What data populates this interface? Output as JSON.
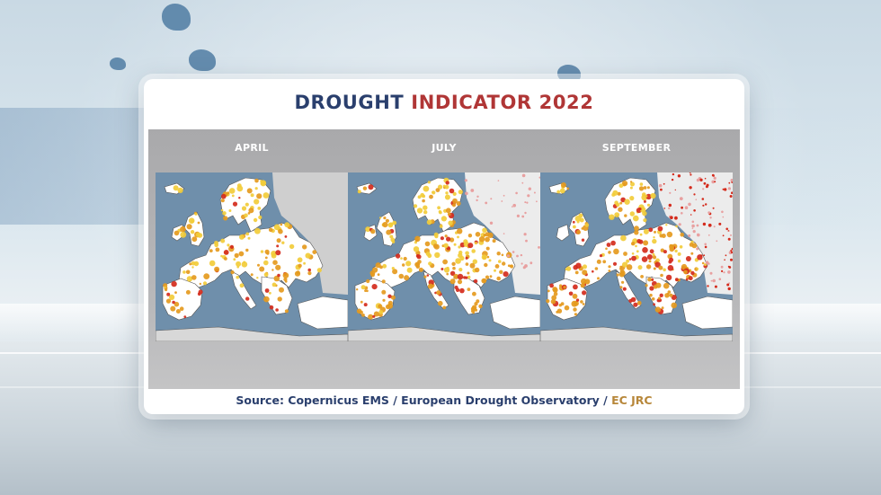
{
  "title": {
    "main": "DROUGHT ",
    "accent": "INDICATOR 2022"
  },
  "maps": [
    {
      "label": "APRIL"
    },
    {
      "label": "JULY"
    },
    {
      "label": "SEPTEMBER"
    }
  ],
  "source": {
    "part1": "Source: Copernicus EMS / European Drought Observatory / ",
    "part2": "EC JRC"
  },
  "colors": {
    "title_blue": "#2a3f6d",
    "title_red": "#b03636",
    "sea": "#6f8fab",
    "non_eu_land": "#cfcfcf",
    "watch": "#f2cc3a",
    "warning": "#e59a1e",
    "alert": "#d42b1c",
    "no_drought": "#ffffff"
  }
}
